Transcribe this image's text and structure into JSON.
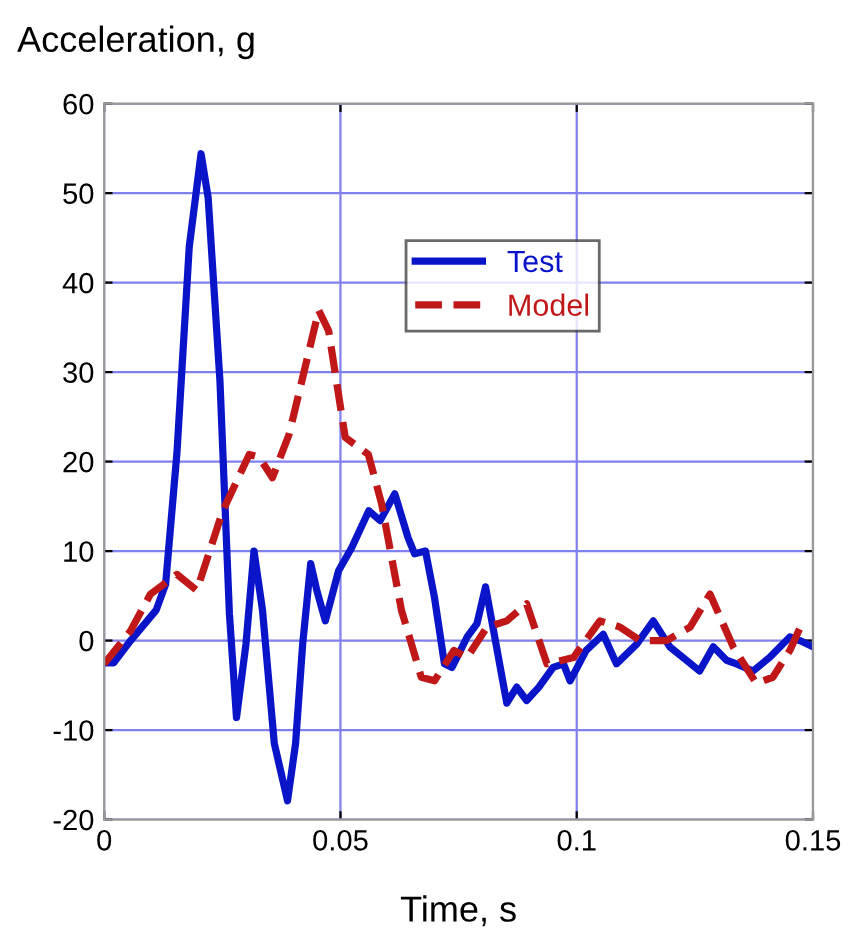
{
  "chart_data": {
    "type": "line",
    "ylabel": "Acceleration, g",
    "xlabel": "Time, s",
    "xlim": [
      0,
      0.15
    ],
    "xticks": [
      0,
      0.05,
      0.1,
      0.15
    ],
    "ylim": [
      -20,
      60
    ],
    "yticks": [
      -20,
      -10,
      0,
      10,
      20,
      30,
      40,
      50,
      60
    ],
    "grid": true,
    "legend": "top right",
    "marker": "none",
    "series": [
      {
        "name": "Test",
        "color": "#0a14c8",
        "line_style": "solid",
        "x": [
          0,
          0.002,
          0.0056,
          0.011,
          0.013,
          0.0154,
          0.018,
          0.0205,
          0.022,
          0.0245,
          0.0265,
          0.028,
          0.03,
          0.0317,
          0.0335,
          0.036,
          0.0388,
          0.0405,
          0.042,
          0.0437,
          0.045,
          0.0468,
          0.0496,
          0.0524,
          0.056,
          0.0584,
          0.0615,
          0.0643,
          0.0657,
          0.068,
          0.0699,
          0.072,
          0.0736,
          0.0754,
          0.0768,
          0.0789,
          0.0807,
          0.0824,
          0.0852,
          0.0873,
          0.0894,
          0.092,
          0.095,
          0.0972,
          0.0986,
          0.102,
          0.1056,
          0.1084,
          0.1127,
          0.1162,
          0.1197,
          0.1232,
          0.126,
          0.1289,
          0.1317,
          0.1338,
          0.1373,
          0.1408,
          0.1451,
          0.1472,
          0.15
        ],
        "values": [
          -2.5,
          -2.5,
          0,
          3.4,
          6.3,
          21,
          44,
          54.4,
          49.5,
          29,
          3,
          -8.6,
          -0.4,
          10,
          3.4,
          -11.5,
          -17.9,
          -11.5,
          -0.4,
          8.6,
          5.6,
          2.2,
          7.8,
          10.4,
          14.5,
          13.4,
          16.4,
          11.5,
          9.7,
          10,
          4.8,
          -2.6,
          -3,
          -1.1,
          0.4,
          1.9,
          6,
          1.1,
          -7,
          -5.2,
          -6.7,
          -5.2,
          -3,
          -2.6,
          -4.5,
          -1.1,
          0.7,
          -2.6,
          -0.4,
          2.2,
          -0.7,
          -2.2,
          -3.4,
          -0.7,
          -2.2,
          -2.6,
          -3.4,
          -1.9,
          0.4,
          0,
          -0.7
        ]
      },
      {
        "name": "Model",
        "color": "#c01818",
        "line_style": "dashed",
        "x": [
          0,
          0.0056,
          0.0098,
          0.0154,
          0.0196,
          0.0251,
          0.0307,
          0.0328,
          0.0356,
          0.0391,
          0.0454,
          0.0475,
          0.051,
          0.0559,
          0.0587,
          0.0629,
          0.0671,
          0.0699,
          0.074,
          0.0768,
          0.081,
          0.0852,
          0.0894,
          0.0937,
          0.0993,
          0.1049,
          0.1092,
          0.1134,
          0.119,
          0.124,
          0.1282,
          0.1331,
          0.138,
          0.1415,
          0.1451,
          0.1479
        ],
        "values": [
          -2.6,
          1.1,
          5.2,
          7.4,
          5.6,
          14.5,
          20.8,
          20.5,
          18.2,
          23,
          36.9,
          34.6,
          22.7,
          20.8,
          15.3,
          3.4,
          -4.1,
          -4.5,
          -1.1,
          -1.9,
          1.5,
          2.2,
          4.1,
          -2.6,
          -1.9,
          2.2,
          1.5,
          0,
          0,
          1.5,
          5.2,
          -0.7,
          -4.8,
          -4.1,
          -1.1,
          2.2
        ]
      }
    ]
  }
}
